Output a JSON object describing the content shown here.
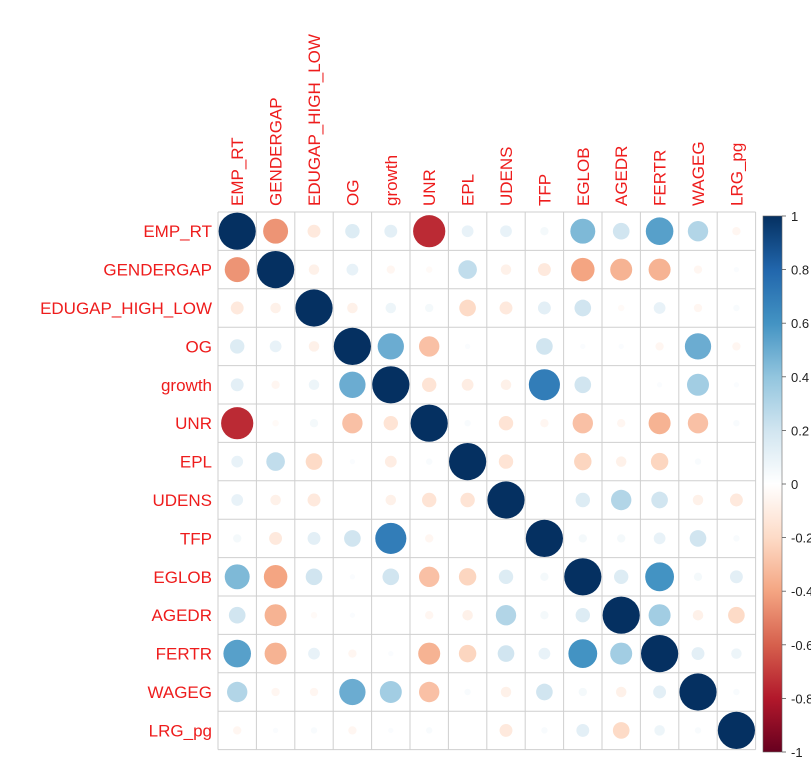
{
  "chart_data": {
    "type": "heatmap",
    "subtype": "correlation-matrix-circles",
    "variables": [
      "EMP_RT",
      "GENDERGAP",
      "EDUGAP_HIGH_LOW",
      "OG",
      "growth",
      "UNR",
      "EPL",
      "UDENS",
      "TFP",
      "EGLOB",
      "AGEDR",
      "FERTR",
      "WAGEG",
      "LRG_pg"
    ],
    "matrix": [
      [
        1.0,
        -0.45,
        -0.12,
        0.15,
        0.12,
        -0.75,
        0.1,
        0.1,
        0.05,
        0.45,
        0.2,
        0.55,
        0.3,
        -0.05
      ],
      [
        -0.45,
        1.0,
        -0.08,
        0.1,
        -0.05,
        -0.03,
        0.25,
        -0.08,
        -0.12,
        -0.4,
        -0.35,
        -0.35,
        -0.05,
        0.02
      ],
      [
        -0.12,
        -0.08,
        1.0,
        -0.08,
        0.08,
        0.05,
        -0.2,
        -0.12,
        0.12,
        0.2,
        -0.03,
        0.1,
        -0.05,
        0.03
      ],
      [
        0.15,
        0.1,
        -0.08,
        1.0,
        0.5,
        -0.3,
        0.02,
        0.0,
        0.2,
        0.02,
        0.02,
        -0.05,
        0.5,
        -0.05
      ],
      [
        0.12,
        -0.05,
        0.08,
        0.5,
        1.0,
        -0.15,
        -0.1,
        -0.08,
        0.7,
        0.2,
        0.0,
        0.02,
        0.35,
        0.02
      ],
      [
        -0.75,
        -0.03,
        0.05,
        -0.3,
        -0.15,
        1.0,
        0.03,
        -0.15,
        -0.05,
        -0.3,
        -0.05,
        -0.35,
        -0.3,
        0.03
      ],
      [
        0.1,
        0.25,
        -0.2,
        0.02,
        -0.1,
        0.03,
        1.0,
        -0.15,
        0.0,
        -0.22,
        -0.08,
        -0.22,
        0.03,
        0.0
      ],
      [
        0.1,
        -0.08,
        -0.12,
        0.0,
        -0.08,
        -0.15,
        -0.15,
        1.0,
        0.0,
        0.15,
        0.3,
        0.2,
        -0.08,
        -0.12
      ],
      [
        0.05,
        -0.12,
        0.12,
        0.2,
        0.7,
        -0.05,
        0.0,
        0.0,
        1.0,
        0.05,
        0.05,
        0.1,
        0.2,
        0.03
      ],
      [
        0.45,
        -0.4,
        0.2,
        0.02,
        0.2,
        -0.3,
        -0.22,
        0.15,
        0.05,
        1.0,
        0.15,
        0.6,
        0.05,
        0.12
      ],
      [
        0.2,
        -0.35,
        -0.03,
        0.02,
        0.0,
        -0.05,
        -0.08,
        0.3,
        0.05,
        0.15,
        1.0,
        0.35,
        -0.08,
        -0.2
      ],
      [
        0.55,
        -0.35,
        0.1,
        -0.05,
        0.02,
        -0.35,
        -0.22,
        0.2,
        0.1,
        0.6,
        0.35,
        1.0,
        0.12,
        0.08
      ],
      [
        0.3,
        -0.05,
        -0.05,
        0.5,
        0.35,
        -0.3,
        0.03,
        -0.08,
        0.2,
        0.05,
        -0.08,
        0.12,
        1.0,
        0.03
      ],
      [
        -0.05,
        0.02,
        0.03,
        -0.05,
        0.02,
        0.03,
        0.0,
        -0.12,
        0.03,
        0.12,
        -0.2,
        0.08,
        0.03,
        1.0
      ]
    ],
    "colorbar": {
      "ticks": [
        "1",
        "0.8",
        "0.6",
        "0.4",
        "0.2",
        "0",
        "-0.2",
        "-0.4",
        "-0.6",
        "-0.8",
        "-1"
      ],
      "range": [
        -1,
        1
      ],
      "colors": [
        "#67001f",
        "#b2182b",
        "#d6604d",
        "#f4a582",
        "#fddbc7",
        "#ffffff",
        "#d1e5f0",
        "#92c5de",
        "#4393c3",
        "#2166ac",
        "#053061"
      ]
    },
    "label_color": "#ee1c1c",
    "grid": true
  }
}
